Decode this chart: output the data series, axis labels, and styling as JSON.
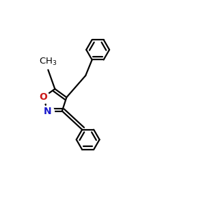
{
  "background_color": "#ffffff",
  "bond_color": "#000000",
  "N_color": "#1a1acc",
  "O_color": "#cc1a1a",
  "figsize": [
    3.0,
    3.0
  ],
  "dpi": 100,
  "lw": 1.6,
  "lw_inner": 1.5
}
